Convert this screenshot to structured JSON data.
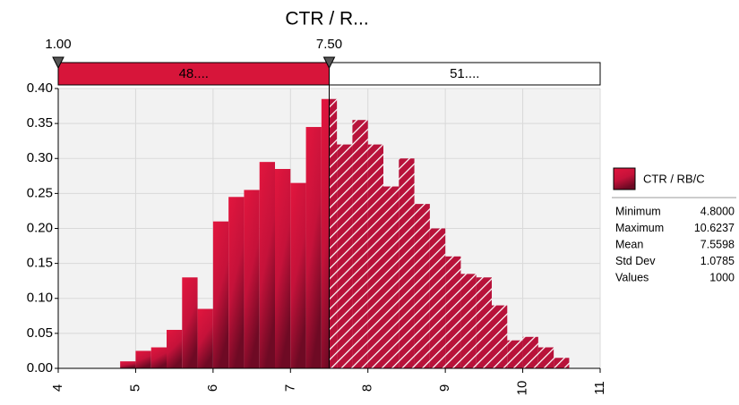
{
  "chart_data": {
    "type": "histogram",
    "title": "CTR / R...",
    "bins": [
      4.8,
      5.0,
      5.2,
      5.4,
      5.6,
      5.8,
      6.0,
      6.2,
      6.4,
      6.6,
      6.8,
      7.0,
      7.2,
      7.4,
      7.6,
      7.8,
      8.0,
      8.2,
      8.4,
      8.6,
      8.8,
      9.0,
      9.2,
      9.4,
      9.6,
      9.8,
      10.0,
      10.2,
      10.4,
      10.6
    ],
    "values": [
      0.01,
      0.025,
      0.03,
      0.055,
      0.13,
      0.085,
      0.21,
      0.245,
      0.255,
      0.295,
      0.285,
      0.265,
      0.345,
      0.385,
      0.32,
      0.355,
      0.32,
      0.26,
      0.3,
      0.235,
      0.2,
      0.16,
      0.135,
      0.13,
      0.09,
      0.04,
      0.045,
      0.03,
      0.015
    ],
    "color": "#d7153a",
    "xlim": [
      4,
      11
    ],
    "xticks": [
      4,
      5,
      6,
      7,
      8,
      9,
      10,
      11
    ],
    "ylim": [
      0,
      0.4
    ],
    "yticks": [
      {
        "value": 0,
        "label": "0.00"
      },
      {
        "value": 0.05,
        "label": "0.05"
      },
      {
        "value": 0.1,
        "label": "0.10"
      },
      {
        "value": 0.15,
        "label": "0.15"
      },
      {
        "value": 0.2,
        "label": "0.20"
      },
      {
        "value": 0.25,
        "label": "0.25"
      },
      {
        "value": 0.3,
        "label": "0.30"
      },
      {
        "value": 0.35,
        "label": "0.35"
      },
      {
        "value": 0.4,
        "label": "0.40"
      }
    ],
    "grid": true,
    "delimiters": [
      {
        "value": 1.0,
        "label": "1.00"
      },
      {
        "value": 7.5,
        "label": "7.50"
      }
    ],
    "regions": [
      "48....",
      "51...."
    ],
    "legend": {
      "name": "CTR / RB/C",
      "stats": [
        [
          "Minimum",
          "4.8000"
        ],
        [
          "Maximum",
          "10.6237"
        ],
        [
          "Mean",
          "7.5598"
        ],
        [
          "Std Dev",
          "1.0785"
        ],
        [
          "Values",
          "1000"
        ]
      ]
    }
  }
}
